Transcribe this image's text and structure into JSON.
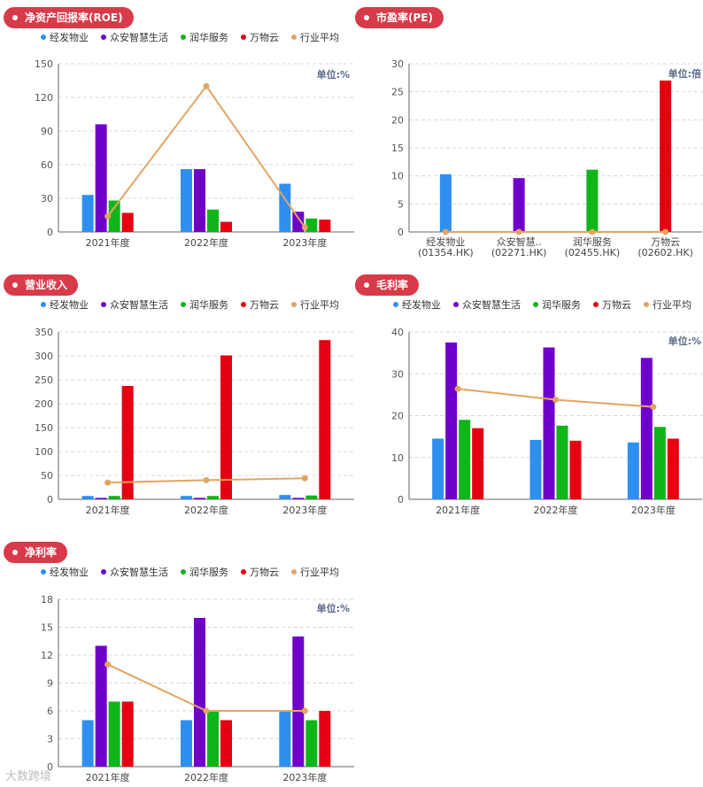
{
  "legend_colors": {
    "经发物业": "#2f8ff0",
    "众安智慧生活": "#6f00cc",
    "润华服务": "#10b519",
    "万物云": "#e50012",
    "行业平均": "#e3a461"
  },
  "watermark": "大数跨境",
  "chart_data": [
    {
      "type": "bar",
      "title": "净资产回报率(ROE)",
      "unit_note": "单位:%",
      "legend": [
        "经发物业",
        "众安智慧生活",
        "润华服务",
        "万物云",
        "行业平均"
      ],
      "categories": [
        "2021年度",
        "2022年度",
        "2023年度"
      ],
      "ylim": [
        0,
        150
      ],
      "yticks": [
        0,
        30,
        60,
        90,
        120,
        150
      ],
      "series": [
        {
          "name": "经发物业",
          "values": [
            33,
            56,
            43
          ]
        },
        {
          "name": "众安智慧生活",
          "values": [
            96,
            56,
            18
          ]
        },
        {
          "name": "润华服务",
          "values": [
            28,
            20,
            12
          ]
        },
        {
          "name": "万物云",
          "values": [
            17,
            9,
            11
          ]
        }
      ],
      "line": {
        "name": "行业平均",
        "values": [
          14,
          130,
          4
        ]
      }
    },
    {
      "type": "bar",
      "title": "市盈率(PE)",
      "unit_note": "单位:倍",
      "legend": [],
      "categories": [
        [
          "经发物业",
          "(01354.HK)"
        ],
        [
          "众安智慧..",
          "(02271.HK)"
        ],
        [
          "润华服务",
          "(02455.HK)"
        ],
        [
          "万物云",
          "(02602.HK)"
        ]
      ],
      "ylim": [
        0,
        30
      ],
      "yticks": [
        0,
        5,
        10,
        15,
        20,
        25,
        30
      ],
      "series": [
        {
          "name": "经发物业",
          "values": [
            10.3,
            null,
            null,
            null
          ]
        },
        {
          "name": "众安智慧生活",
          "values": [
            null,
            9.6,
            null,
            null
          ]
        },
        {
          "name": "润华服务",
          "values": [
            null,
            null,
            11.1,
            null
          ]
        },
        {
          "name": "万物云",
          "values": [
            null,
            null,
            null,
            27
          ]
        }
      ],
      "line": {
        "name": "行业平均",
        "values": [
          0,
          0,
          0,
          0
        ]
      }
    },
    {
      "type": "bar",
      "title": "营业收入",
      "unit_note": "",
      "legend": [
        "经发物业",
        "众安智慧生活",
        "润华服务",
        "万物云",
        "行业平均"
      ],
      "categories": [
        "2021年度",
        "2022年度",
        "2023年度"
      ],
      "ylim": [
        0,
        350
      ],
      "yticks": [
        0,
        50,
        100,
        150,
        200,
        250,
        300,
        350
      ],
      "series": [
        {
          "name": "经发物业",
          "values": [
            7,
            7,
            9
          ]
        },
        {
          "name": "众安智慧生活",
          "values": [
            3,
            3,
            3
          ]
        },
        {
          "name": "润华服务",
          "values": [
            7,
            7,
            8
          ]
        },
        {
          "name": "万物云",
          "values": [
            237,
            301,
            333
          ]
        }
      ],
      "line": {
        "name": "行业平均",
        "values": [
          35,
          40,
          44
        ]
      }
    },
    {
      "type": "bar",
      "title": "毛利率",
      "unit_note": "单位:%",
      "legend": [
        "经发物业",
        "众安智慧生活",
        "润华服务",
        "万物云",
        "行业平均"
      ],
      "categories": [
        "2021年度",
        "2022年度",
        "2023年度"
      ],
      "ylim": [
        0,
        40
      ],
      "yticks": [
        0,
        10,
        20,
        30,
        40
      ],
      "series": [
        {
          "name": "经发物业",
          "values": [
            14.5,
            14.2,
            13.6
          ]
        },
        {
          "name": "众安智慧生活",
          "values": [
            37.5,
            36.3,
            33.8
          ]
        },
        {
          "name": "润华服务",
          "values": [
            19,
            17.6,
            17.3
          ]
        },
        {
          "name": "万物云",
          "values": [
            17,
            14,
            14.5
          ]
        }
      ],
      "line": {
        "name": "行业平均",
        "values": [
          26.4,
          23.8,
          22.1
        ]
      }
    },
    {
      "type": "bar",
      "title": "净利率",
      "unit_note": "单位:%",
      "legend": [
        "经发物业",
        "众安智慧生活",
        "润华服务",
        "万物云",
        "行业平均"
      ],
      "categories": [
        "2021年度",
        "2022年度",
        "2023年度"
      ],
      "ylim": [
        0,
        18
      ],
      "yticks": [
        0,
        3,
        6,
        9,
        12,
        15,
        18
      ],
      "series": [
        {
          "name": "经发物业",
          "values": [
            5,
            5,
            6
          ]
        },
        {
          "name": "众安智慧生活",
          "values": [
            13,
            16,
            14
          ]
        },
        {
          "name": "润华服务",
          "values": [
            7,
            6,
            5
          ]
        },
        {
          "name": "万物云",
          "values": [
            7,
            5,
            6
          ]
        }
      ],
      "line": {
        "name": "行业平均",
        "values": [
          11,
          6,
          6
        ]
      }
    }
  ]
}
